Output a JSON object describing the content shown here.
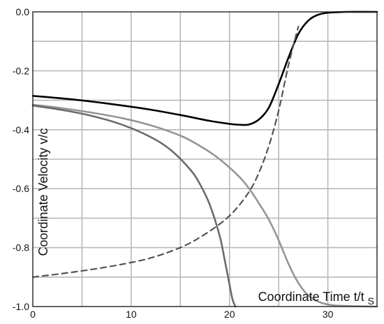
{
  "chart_data": {
    "type": "line",
    "title": "",
    "xlabel": "Coordinate Time t/t",
    "xlabel_subscript": "S",
    "ylabel": "Coordinate Velocity v/c",
    "xlim": [
      0,
      35
    ],
    "ylim": [
      -1.0,
      0.0
    ],
    "xticks": [
      0,
      10,
      20,
      30
    ],
    "yticks": [
      -1.0,
      -0.8,
      -0.6,
      -0.4,
      -0.2,
      0.0
    ],
    "ytick_labels": [
      "-1.0",
      "-0.8",
      "-0.6",
      "-0.4",
      "-0.2",
      "0.0"
    ],
    "grid": true,
    "x_minor_step": 5,
    "y_minor_step": 0.1,
    "series": [
      {
        "color": "#000000",
        "style": "solid",
        "x": [
          0,
          4,
          8,
          12,
          15,
          18,
          20,
          21,
          22,
          23,
          24,
          25,
          26,
          27,
          28,
          29,
          30,
          31,
          32,
          35
        ],
        "y": [
          -0.285,
          -0.297,
          -0.313,
          -0.332,
          -0.35,
          -0.37,
          -0.38,
          -0.383,
          -0.382,
          -0.365,
          -0.325,
          -0.245,
          -0.155,
          -0.075,
          -0.03,
          -0.01,
          -0.003,
          -0.001,
          0.0,
          0.0
        ]
      },
      {
        "color": "#555555",
        "style": "dashed",
        "x": [
          0,
          3,
          6,
          9,
          12,
          15,
          17,
          19,
          20.5,
          22,
          23,
          24,
          25,
          26,
          27
        ],
        "y": [
          -0.9,
          -0.888,
          -0.874,
          -0.857,
          -0.835,
          -0.8,
          -0.765,
          -0.72,
          -0.675,
          -0.61,
          -0.545,
          -0.455,
          -0.335,
          -0.18,
          -0.05
        ]
      },
      {
        "color": "#959595",
        "style": "solid",
        "x": [
          0,
          3,
          6,
          9,
          12,
          15,
          17,
          19,
          21,
          22,
          23,
          24,
          25,
          26,
          27,
          28,
          29,
          30,
          31,
          33,
          35
        ],
        "y": [
          -0.315,
          -0.327,
          -0.342,
          -0.36,
          -0.385,
          -0.42,
          -0.455,
          -0.5,
          -0.56,
          -0.6,
          -0.65,
          -0.705,
          -0.775,
          -0.855,
          -0.92,
          -0.962,
          -0.983,
          -0.993,
          -0.997,
          -0.999,
          -1.0
        ]
      },
      {
        "color": "#6b6b6b",
        "style": "solid",
        "x": [
          0,
          3,
          6,
          9,
          12,
          14,
          16,
          17,
          18,
          19,
          19.5,
          20,
          20.3,
          20.6
        ],
        "y": [
          -0.318,
          -0.333,
          -0.353,
          -0.382,
          -0.425,
          -0.468,
          -0.535,
          -0.585,
          -0.655,
          -0.76,
          -0.84,
          -0.925,
          -0.975,
          -1.0
        ]
      }
    ]
  }
}
